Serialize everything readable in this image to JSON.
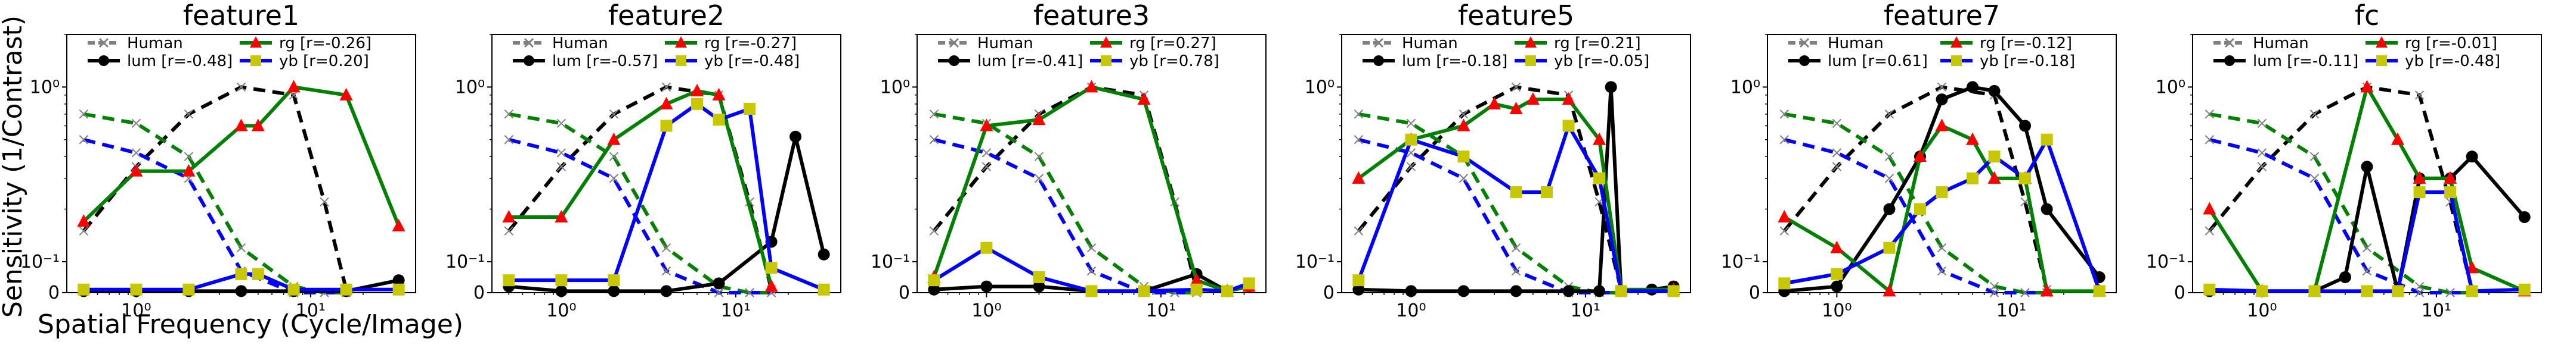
{
  "figure": {
    "ylabel": "Sensitivity (1/Contrast)",
    "xlabel": "Spatial Frequency (Cycle/Image)"
  },
  "colors": {
    "human": "#808080",
    "lum": "#000000",
    "rg": "#008000",
    "yb": "#0000ff",
    "rg_marker": "#ff0000",
    "yb_marker": "#c8c800"
  },
  "chart_data": [
    {
      "type": "line",
      "title": "feature1",
      "xscale": "log",
      "yscale": "symlog",
      "xlim": [
        0.4,
        40
      ],
      "ylim": [
        0,
        2
      ],
      "grid": false,
      "legend_placement": "top-center",
      "legend": [
        "Human",
        "lum [r=-0.48]",
        "rg    [r=-0.26]",
        "yb    [r=0.20]"
      ],
      "series": [
        {
          "name": "Human",
          "x": [
            0.5,
            1,
            2,
            4,
            8,
            12,
            16
          ],
          "lum": [
            0.15,
            0.35,
            0.7,
            1.0,
            0.9,
            0.22,
            0.01
          ],
          "rg": [
            0.7,
            0.62,
            0.4,
            0.12,
            0.02,
            0.0,
            0.0
          ],
          "yb": [
            0.5,
            0.42,
            0.3,
            0.07,
            0.0,
            0.0,
            0.0
          ]
        },
        {
          "name": "lum [r=-0.48]",
          "x": [
            0.5,
            1,
            2,
            4,
            8,
            16,
            32
          ],
          "y": [
            0.005,
            0.005,
            0.005,
            0.005,
            0.005,
            0.005,
            0.04
          ]
        },
        {
          "name": "rg    [r=-0.26]",
          "x": [
            0.5,
            1,
            2,
            4,
            5,
            8,
            16,
            32
          ],
          "y": [
            0.17,
            0.33,
            0.33,
            0.6,
            0.6,
            1.0,
            0.9,
            0.16
          ]
        },
        {
          "name": "yb    [r=0.20]",
          "x": [
            0.5,
            1,
            2,
            4,
            5,
            8,
            16,
            32
          ],
          "y": [
            0.01,
            0.01,
            0.01,
            0.06,
            0.06,
            0.01,
            0.01,
            0.01
          ]
        }
      ]
    },
    {
      "type": "line",
      "title": "feature2",
      "xscale": "log",
      "yscale": "symlog",
      "xlim": [
        0.4,
        40
      ],
      "ylim": [
        0,
        2
      ],
      "grid": false,
      "legend_placement": "top-center",
      "legend": [
        "Human",
        "lum [r=-0.57]",
        "rg    [r=-0.27]",
        "yb    [r=-0.48]"
      ],
      "series": [
        {
          "name": "lum [r=-0.57]",
          "x": [
            0.5,
            1,
            2,
            4,
            8,
            16,
            22,
            32
          ],
          "y": [
            0.02,
            0.005,
            0.005,
            0.005,
            0.03,
            0.13,
            0.52,
            0.11
          ]
        },
        {
          "name": "rg    [r=-0.27]",
          "x": [
            0.5,
            1,
            2,
            4,
            6,
            8,
            16
          ],
          "y": [
            0.18,
            0.18,
            0.5,
            0.8,
            0.95,
            0.9,
            0.02
          ]
        },
        {
          "name": "yb    [r=-0.48]",
          "x": [
            0.5,
            1,
            2,
            4,
            6,
            8,
            12,
            16,
            32
          ],
          "y": [
            0.04,
            0.04,
            0.04,
            0.6,
            0.8,
            0.65,
            0.75,
            0.08,
            0.01
          ]
        }
      ]
    },
    {
      "type": "line",
      "title": "feature3",
      "xscale": "log",
      "yscale": "symlog",
      "xlim": [
        0.4,
        40
      ],
      "ylim": [
        0,
        2
      ],
      "grid": false,
      "legend_placement": "top-center",
      "legend": [
        "Human",
        "lum [r=-0.41]",
        "rg    [r=0.27]",
        "yb    [r=0.78]"
      ],
      "series": [
        {
          "name": "lum [r=-0.41]",
          "x": [
            0.5,
            1,
            2,
            4,
            8,
            16,
            24,
            32
          ],
          "y": [
            0.01,
            0.02,
            0.02,
            0.005,
            0.005,
            0.06,
            0.005,
            0.02
          ]
        },
        {
          "name": "rg    [r=0.27]",
          "x": [
            0.5,
            1,
            2,
            4,
            8,
            16,
            24,
            32
          ],
          "y": [
            0.05,
            0.6,
            0.65,
            1.0,
            0.85,
            0.04,
            0.005,
            0.02
          ]
        },
        {
          "name": "yb    [r=0.78]",
          "x": [
            0.5,
            1,
            2,
            4,
            8,
            16,
            24,
            32
          ],
          "y": [
            0.04,
            0.12,
            0.05,
            0.005,
            0.005,
            0.01,
            0.005,
            0.03
          ]
        }
      ]
    },
    {
      "type": "line",
      "title": "feature5",
      "xscale": "log",
      "yscale": "symlog",
      "xlim": [
        0.4,
        40
      ],
      "ylim": [
        0,
        2
      ],
      "grid": false,
      "legend_placement": "top-center",
      "legend": [
        "Human",
        "lum [r=-0.18]",
        "rg    [r=0.21]",
        "yb    [r=-0.05]"
      ],
      "series": [
        {
          "name": "lum [r=-0.18]",
          "x": [
            0.5,
            1,
            2,
            4,
            8,
            12,
            14,
            16,
            24,
            32
          ],
          "y": [
            0.01,
            0.005,
            0.005,
            0.005,
            0.005,
            0.005,
            1.0,
            0.005,
            0.01,
            0.02
          ]
        },
        {
          "name": "rg    [r=0.21]",
          "x": [
            0.5,
            1,
            2,
            3,
            4,
            5,
            8,
            12,
            16,
            32
          ],
          "y": [
            0.3,
            0.5,
            0.6,
            0.8,
            0.75,
            0.85,
            0.85,
            0.5,
            0.01,
            0.01
          ]
        },
        {
          "name": "yb    [r=-0.05]",
          "x": [
            0.5,
            1,
            2,
            4,
            6,
            8,
            12,
            16,
            32
          ],
          "y": [
            0.04,
            0.5,
            0.4,
            0.25,
            0.25,
            0.6,
            0.3,
            0.005,
            0.005
          ]
        }
      ]
    },
    {
      "type": "line",
      "title": "feature7",
      "xscale": "log",
      "yscale": "symlog",
      "xlim": [
        0.4,
        40
      ],
      "ylim": [
        0,
        2
      ],
      "grid": false,
      "legend_placement": "top-center",
      "legend": [
        "Human",
        "lum [r=0.61]",
        "rg    [r=-0.12]",
        "yb    [r=-0.18]"
      ],
      "series": [
        {
          "name": "lum [r=0.61]",
          "x": [
            0.5,
            1,
            2,
            3,
            4,
            6,
            8,
            12,
            16,
            32
          ],
          "y": [
            0.005,
            0.02,
            0.2,
            0.4,
            0.85,
            1.0,
            0.95,
            0.6,
            0.2,
            0.05
          ]
        },
        {
          "name": "rg    [r=-0.12]",
          "x": [
            0.5,
            1,
            2,
            3,
            4,
            6,
            8,
            12,
            16,
            32
          ],
          "y": [
            0.18,
            0.12,
            0.005,
            0.4,
            0.6,
            0.5,
            0.3,
            0.3,
            0.005,
            0.005
          ]
        },
        {
          "name": "yb    [r=-0.18]",
          "x": [
            0.5,
            1,
            2,
            3,
            4,
            6,
            8,
            12,
            16,
            32
          ],
          "y": [
            0.03,
            0.06,
            0.12,
            0.2,
            0.25,
            0.3,
            0.4,
            0.3,
            0.5,
            0.005
          ]
        }
      ]
    },
    {
      "type": "line",
      "title": "fc",
      "xscale": "log",
      "yscale": "symlog",
      "xlim": [
        0.4,
        40
      ],
      "ylim": [
        0,
        2
      ],
      "grid": false,
      "legend_placement": "top-center",
      "legend": [
        "Human",
        "lum [r=-0.11]",
        "rg    [r=-0.01]",
        "yb    [r=-0.48]"
      ],
      "series": [
        {
          "name": "lum [r=-0.11]",
          "x": [
            0.5,
            1,
            2,
            3,
            4,
            6,
            8,
            12,
            16,
            32
          ],
          "y": [
            0.005,
            0.005,
            0.005,
            0.05,
            0.35,
            0.005,
            0.3,
            0.3,
            0.4,
            0.18
          ]
        },
        {
          "name": "rg    [r=-0.01]",
          "x": [
            0.5,
            1,
            2,
            4,
            6,
            8,
            12,
            16,
            32
          ],
          "y": [
            0.2,
            0.005,
            0.005,
            1.0,
            0.5,
            0.3,
            0.3,
            0.08,
            0.005
          ]
        },
        {
          "name": "yb    [r=-0.48]",
          "x": [
            0.5,
            1,
            2,
            4,
            6,
            8,
            12,
            16,
            32
          ],
          "y": [
            0.01,
            0.005,
            0.005,
            0.005,
            0.005,
            0.25,
            0.25,
            0.005,
            0.01
          ]
        }
      ]
    }
  ]
}
